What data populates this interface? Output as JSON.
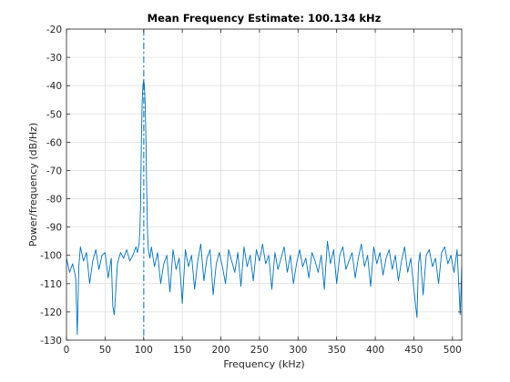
{
  "chart_data": {
    "type": "line",
    "title": "Mean Frequency Estimate: 100.134 kHz",
    "xlabel": "Frequency (kHz)",
    "ylabel": "Power/frequency (dB/Hz)",
    "xlim": [
      0,
      512
    ],
    "ylim": [
      -130,
      -20
    ],
    "xticks": [
      0,
      50,
      100,
      150,
      200,
      250,
      300,
      350,
      400,
      450,
      500
    ],
    "yticks": [
      -20,
      -30,
      -40,
      -50,
      -60,
      -70,
      -80,
      -90,
      -100,
      -110,
      -120,
      -130
    ],
    "grid": true,
    "mean_frequency_marker": {
      "x": 100.134,
      "style": "dash-dot"
    },
    "colors": {
      "series": "#0072BD",
      "grid": "#dfdfdf",
      "axes": "#262626"
    },
    "series": [
      {
        "values_x": [
          0,
          4,
          8,
          12,
          14,
          16,
          18,
          22,
          26,
          30,
          34,
          38,
          42,
          46,
          50,
          54,
          58,
          60,
          62,
          66,
          70,
          74,
          78,
          82,
          86,
          90,
          92,
          94,
          95,
          96,
          97,
          98,
          99,
          100,
          101,
          102,
          103,
          104,
          105,
          106,
          108,
          110,
          114,
          118,
          122,
          126,
          130,
          134,
          138,
          142,
          146,
          150,
          154,
          158,
          162,
          166,
          170,
          174,
          178,
          182,
          186,
          190,
          194,
          198,
          202,
          206,
          210,
          214,
          218,
          222,
          226,
          230,
          234,
          238,
          242,
          246,
          250,
          254,
          258,
          262,
          266,
          270,
          274,
          278,
          282,
          286,
          290,
          294,
          298,
          302,
          306,
          310,
          314,
          318,
          322,
          326,
          330,
          334,
          338,
          342,
          346,
          350,
          354,
          358,
          362,
          366,
          370,
          374,
          378,
          382,
          386,
          390,
          394,
          398,
          402,
          406,
          410,
          414,
          418,
          422,
          426,
          430,
          434,
          438,
          442,
          446,
          450,
          454,
          456,
          458,
          462,
          466,
          470,
          474,
          478,
          482,
          486,
          490,
          494,
          498,
          502,
          506,
          510,
          512
        ],
        "values_y": [
          -101,
          -106,
          -103,
          -108,
          -128,
          -104,
          -97,
          -102,
          -99,
          -110,
          -102,
          -98,
          -105,
          -100,
          -99,
          -108,
          -101,
          -118,
          -121,
          -103,
          -99,
          -101,
          -98,
          -102,
          -100,
          -97,
          -99,
          -96,
          -92,
          -82,
          -60,
          -46,
          -40,
          -38,
          -40,
          -47,
          -60,
          -78,
          -92,
          -98,
          -101,
          -97,
          -104,
          -99,
          -110,
          -103,
          -100,
          -113,
          -98,
          -105,
          -101,
          -117,
          -98,
          -104,
          -100,
          -112,
          -102,
          -96,
          -109,
          -101,
          -98,
          -114,
          -103,
          -99,
          -104,
          -110,
          -98,
          -102,
          -106,
          -99,
          -111,
          -97,
          -104,
          -100,
          -109,
          -98,
          -102,
          -96,
          -103,
          -100,
          -112,
          -99,
          -105,
          -101,
          -97,
          -106,
          -100,
          -110,
          -103,
          -98,
          -104,
          -101,
          -108,
          -99,
          -102,
          -106,
          -100,
          -112,
          -95,
          -103,
          -98,
          -110,
          -100,
          -97,
          -105,
          -102,
          -99,
          -108,
          -101,
          -96,
          -104,
          -100,
          -111,
          -97,
          -103,
          -99,
          -107,
          -101,
          -98,
          -105,
          -100,
          -109,
          -102,
          -97,
          -106,
          -101,
          -112,
          -122,
          -103,
          -99,
          -114,
          -100,
          -98,
          -104,
          -101,
          -110,
          -99,
          -97,
          -103,
          -100,
          -106,
          -98,
          -121,
          -104
        ]
      }
    ]
  }
}
